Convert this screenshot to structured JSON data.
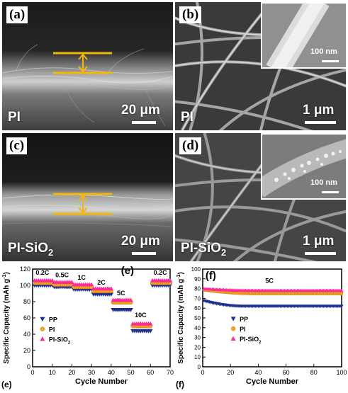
{
  "panels": {
    "a": {
      "tag": "(a)",
      "material": "PI",
      "scale": "20 μm"
    },
    "b": {
      "tag": "(b)",
      "material": "PI",
      "scale": "1 μm",
      "inset_scale": "100 nm"
    },
    "c": {
      "tag": "(c)",
      "material_main": "PI-SiO",
      "material_sub": "2",
      "scale": "20 μm"
    },
    "d": {
      "tag": "(d)",
      "material_main": "PI-SiO",
      "material_sub": "2",
      "scale": "1 μm",
      "inset_scale": "100 nm"
    }
  },
  "colors": {
    "PP": "#1f2f8f",
    "PI": "#f5a623",
    "PI-SiO2": "#ff2a9a",
    "thickness_marker": "#f5b50a"
  },
  "chart_data": [
    {
      "type": "scatter",
      "panel_tag": "(e)",
      "bottom_tag": "(e)",
      "xlabel": "Cycle Number",
      "ylabel": "Specific Capacity (mAh g",
      "ylabel_sup": "-1",
      "ylabel_close": ")",
      "xlim": [
        0,
        70
      ],
      "ylim": [
        0,
        120
      ],
      "xticks": [
        "0",
        "10",
        "20",
        "30",
        "40",
        "50",
        "60",
        "70"
      ],
      "yticks": [
        "0",
        "20",
        "40",
        "60",
        "80",
        "100",
        "120"
      ],
      "rate_labels": [
        {
          "text": "0.2C",
          "x": 5,
          "y": 113
        },
        {
          "text": "0.5C",
          "x": 15,
          "y": 110
        },
        {
          "text": "1C",
          "x": 25,
          "y": 107
        },
        {
          "text": "2C",
          "x": 35,
          "y": 101
        },
        {
          "text": "5C",
          "x": 45,
          "y": 88
        },
        {
          "text": "10C",
          "x": 55,
          "y": 61
        },
        {
          "text": "0.2C",
          "x": 65,
          "y": 113
        }
      ],
      "legend": [
        {
          "name": "PP",
          "marker": "triangle-down"
        },
        {
          "name": "PI",
          "marker": "circle"
        },
        {
          "name": "PI-SiO",
          "name_sub": "2",
          "marker": "triangle-up"
        }
      ],
      "series": [
        {
          "name": "PP",
          "marker": "triangle-down",
          "segments": [
            [
              1,
              10,
              100
            ],
            [
              11,
              20,
              98
            ],
            [
              21,
              30,
              95
            ],
            [
              31,
              40,
              89
            ],
            [
              41,
              50,
              70
            ],
            [
              51,
              60,
              44
            ],
            [
              61,
              70,
              100
            ]
          ]
        },
        {
          "name": "PI",
          "marker": "circle",
          "segments": [
            [
              1,
              10,
              103
            ],
            [
              11,
              20,
              101
            ],
            [
              21,
              30,
              98
            ],
            [
              31,
              40,
              93
            ],
            [
              41,
              50,
              79
            ],
            [
              51,
              60,
              50
            ],
            [
              61,
              70,
              103
            ]
          ]
        },
        {
          "name": "PI-SiO2",
          "marker": "triangle-up",
          "segments": [
            [
              1,
              10,
              106
            ],
            [
              11,
              20,
              104
            ],
            [
              21,
              30,
              101
            ],
            [
              31,
              40,
              96
            ],
            [
              41,
              50,
              82
            ],
            [
              51,
              60,
              53
            ],
            [
              61,
              70,
              106
            ]
          ]
        }
      ]
    },
    {
      "type": "scatter",
      "panel_tag": "(f)",
      "bottom_tag": "(f)",
      "xlabel": "Cycle Number",
      "ylabel": "Specific Capacity (mAh g",
      "ylabel_sup": "-1",
      "ylabel_close": ")",
      "xlim": [
        0,
        100
      ],
      "ylim": [
        0,
        100
      ],
      "xticks": [
        "0",
        "20",
        "40",
        "60",
        "80",
        "100"
      ],
      "yticks": [
        "0",
        "10",
        "20",
        "30",
        "40",
        "50",
        "60",
        "70",
        "80",
        "90",
        "100"
      ],
      "rate_label": "5C",
      "legend": [
        {
          "name": "PP",
          "marker": "triangle-down"
        },
        {
          "name": "PI",
          "marker": "circle"
        },
        {
          "name": "PI-SiO",
          "name_sub": "2",
          "marker": "triangle-up"
        }
      ],
      "series": [
        {
          "name": "PP",
          "marker": "triangle-down",
          "start": 68,
          "plateau": 62,
          "decay_cycles": 30
        },
        {
          "name": "PI",
          "marker": "circle",
          "start": 79,
          "plateau": 75,
          "decay_cycles": 40
        },
        {
          "name": "PI-SiO2",
          "marker": "triangle-up",
          "start": 80,
          "plateau": 78,
          "decay_cycles": 40
        }
      ]
    }
  ]
}
